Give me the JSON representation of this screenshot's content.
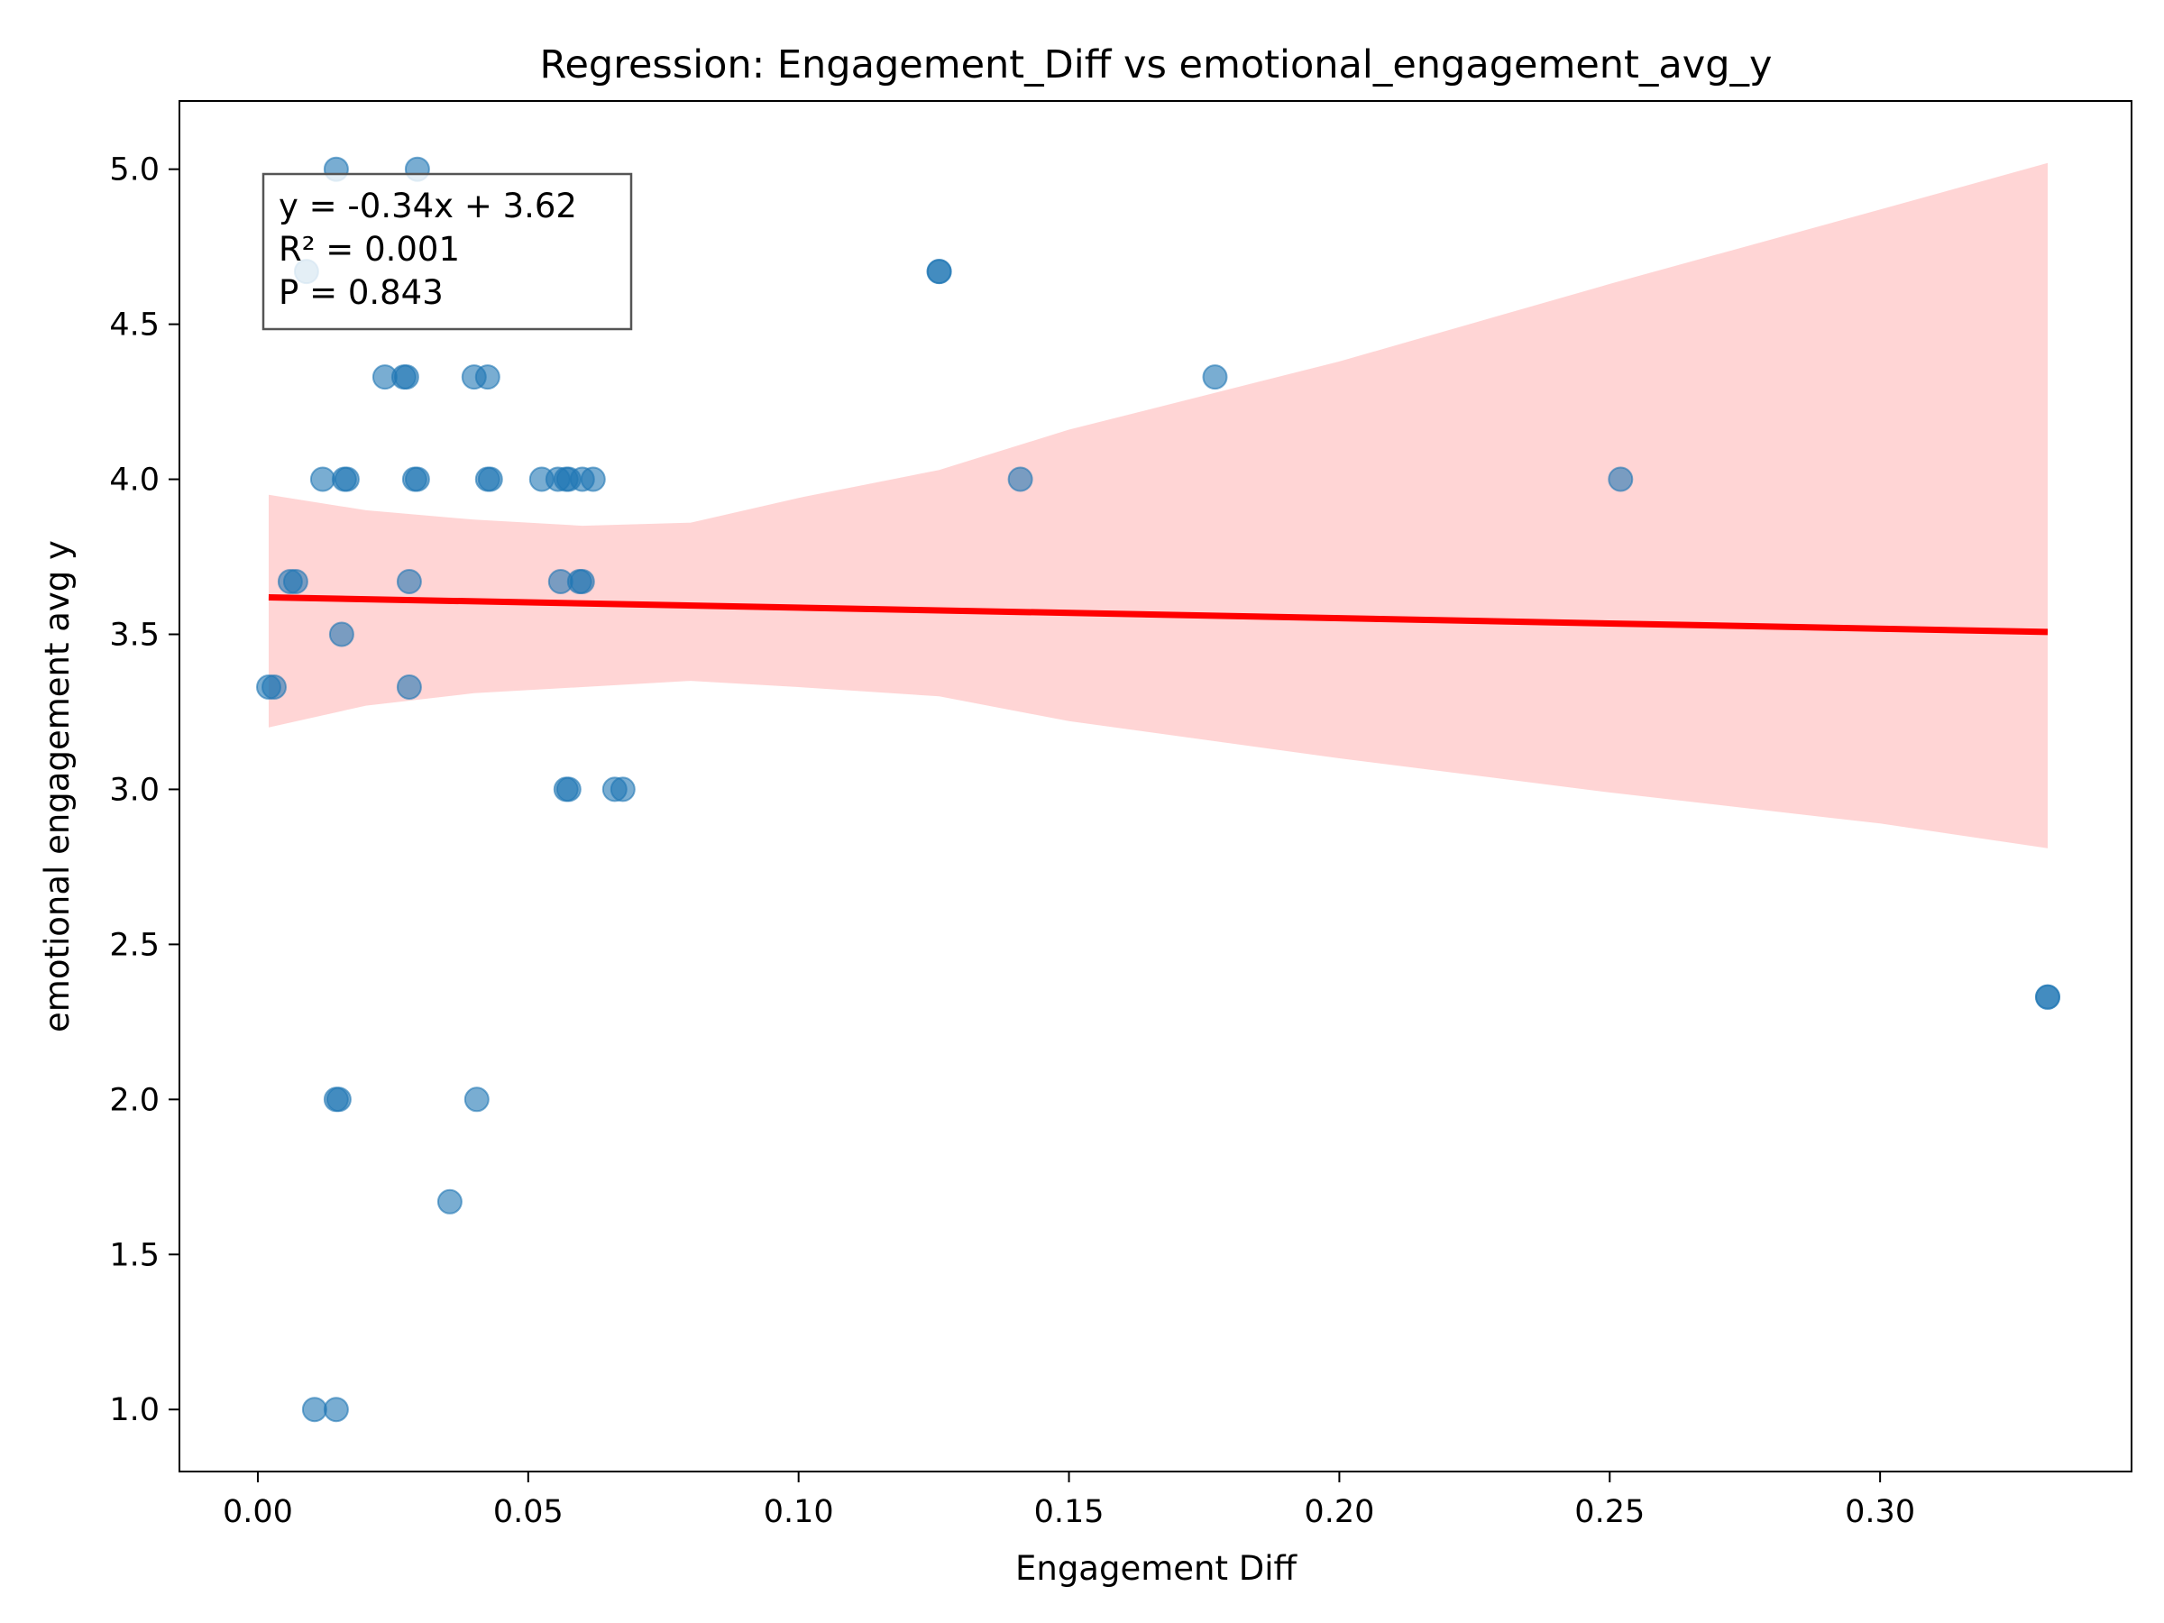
{
  "chart_data": {
    "type": "scatter",
    "title": "Regression: Engagement_Diff vs emotional_engagement_avg_y",
    "xlabel": "Engagement Diff",
    "ylabel": "emotional engagement avg y",
    "xlim": [
      -0.0145,
      0.3465
    ],
    "ylim": [
      0.8,
      5.22
    ],
    "xticks": [
      "0.00",
      "0.05",
      "0.10",
      "0.15",
      "0.20",
      "0.25",
      "0.30"
    ],
    "yticks": [
      "1.0",
      "1.5",
      "2.0",
      "2.5",
      "3.0",
      "3.5",
      "4.0",
      "4.5",
      "5.0"
    ],
    "grid": false,
    "points": {
      "color": "#1f77b4",
      "opacity": 0.6,
      "x": [
        0.0145,
        0.0295,
        0.009,
        0.126,
        0.126,
        0.0235,
        0.027,
        0.0275,
        0.04,
        0.0425,
        0.177,
        0.012,
        0.0165,
        0.016,
        0.029,
        0.0295,
        0.0425,
        0.043,
        0.0525,
        0.0555,
        0.057,
        0.0575,
        0.06,
        0.062,
        0.141,
        0.252,
        0.006,
        0.007,
        0.028,
        0.056,
        0.0595,
        0.06,
        0.0155,
        0.002,
        0.003,
        0.028,
        0.057,
        0.0575,
        0.066,
        0.0675,
        0.331,
        0.331,
        0.0145,
        0.015,
        0.0405,
        0.0355,
        0.0105,
        0.0145
      ],
      "y": [
        5.0,
        5.0,
        4.67,
        4.67,
        4.67,
        4.33,
        4.33,
        4.33,
        4.33,
        4.33,
        4.33,
        4.0,
        4.0,
        4.0,
        4.0,
        4.0,
        4.0,
        4.0,
        4.0,
        4.0,
        4.0,
        4.0,
        4.0,
        4.0,
        4.0,
        4.0,
        3.67,
        3.67,
        3.67,
        3.67,
        3.67,
        3.67,
        3.5,
        3.33,
        3.33,
        3.33,
        3.0,
        3.0,
        3.0,
        3.0,
        2.33,
        2.33,
        2.0,
        2.0,
        2.0,
        1.67,
        1.0,
        1.0
      ]
    },
    "regression": {
      "slope": -0.34,
      "intercept": 3.62,
      "x_range": [
        0.002,
        0.331
      ],
      "color": "#ff0000",
      "band_color": "#ffb3b3",
      "band": {
        "x": [
          0.002,
          0.02,
          0.04,
          0.06,
          0.08,
          0.1,
          0.126,
          0.15,
          0.2,
          0.25,
          0.3,
          0.331
        ],
        "upper": [
          3.95,
          3.9,
          3.87,
          3.85,
          3.86,
          3.94,
          4.03,
          4.16,
          4.38,
          4.63,
          4.87,
          5.02
        ],
        "lower": [
          3.2,
          3.27,
          3.31,
          3.33,
          3.35,
          3.33,
          3.3,
          3.22,
          3.1,
          2.99,
          2.89,
          2.81
        ]
      }
    },
    "annotation": {
      "lines": [
        "y = -0.34x + 3.62",
        "R² = 0.001",
        "P = 0.843"
      ]
    }
  }
}
